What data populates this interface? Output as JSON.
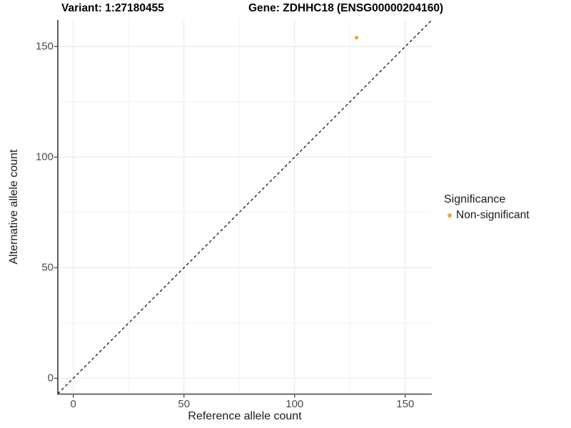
{
  "titles": {
    "left": "Variant: 1:27180455",
    "right": "Gene: ZDHHC18 (ENSG00000204160)"
  },
  "axes": {
    "x_label": "Reference allele count",
    "y_label": "Alternative allele count"
  },
  "legend": {
    "title": "Significance",
    "items": [
      {
        "label": "Non-significant",
        "color": "#F8A43C"
      }
    ]
  },
  "chart_data": {
    "type": "scatter",
    "title": "Variant: 1:27180455    Gene: ZDHHC18 (ENSG00000204160)",
    "xlabel": "Reference allele count",
    "ylabel": "Alternative allele count",
    "xlim": [
      -7,
      162
    ],
    "ylim": [
      -7,
      162
    ],
    "x_ticks": [
      0,
      50,
      100,
      150
    ],
    "y_ticks": [
      0,
      50,
      100,
      150
    ],
    "x_minor_ticks": [
      25,
      75,
      125
    ],
    "y_minor_ticks": [
      25,
      75,
      125
    ],
    "grid": "major+minor",
    "legend_position": "right",
    "series": [
      {
        "name": "Non-significant",
        "color": "#F8A43C",
        "points": [
          {
            "x": 128,
            "y": 154
          }
        ]
      }
    ],
    "reference_line": {
      "kind": "y=x",
      "style": "dashed",
      "color": "#000000",
      "from": -7,
      "to": 162
    },
    "style_colors": {
      "grid_major": "#e7e7e7",
      "grid_minor": "#f3f3f3",
      "axis_line_y": "#1a1a1a",
      "axis_line_x": "#6b6b6b",
      "tick_mark": "#333333",
      "tick_label": "#4a4a4a",
      "background": "#ffffff"
    }
  }
}
